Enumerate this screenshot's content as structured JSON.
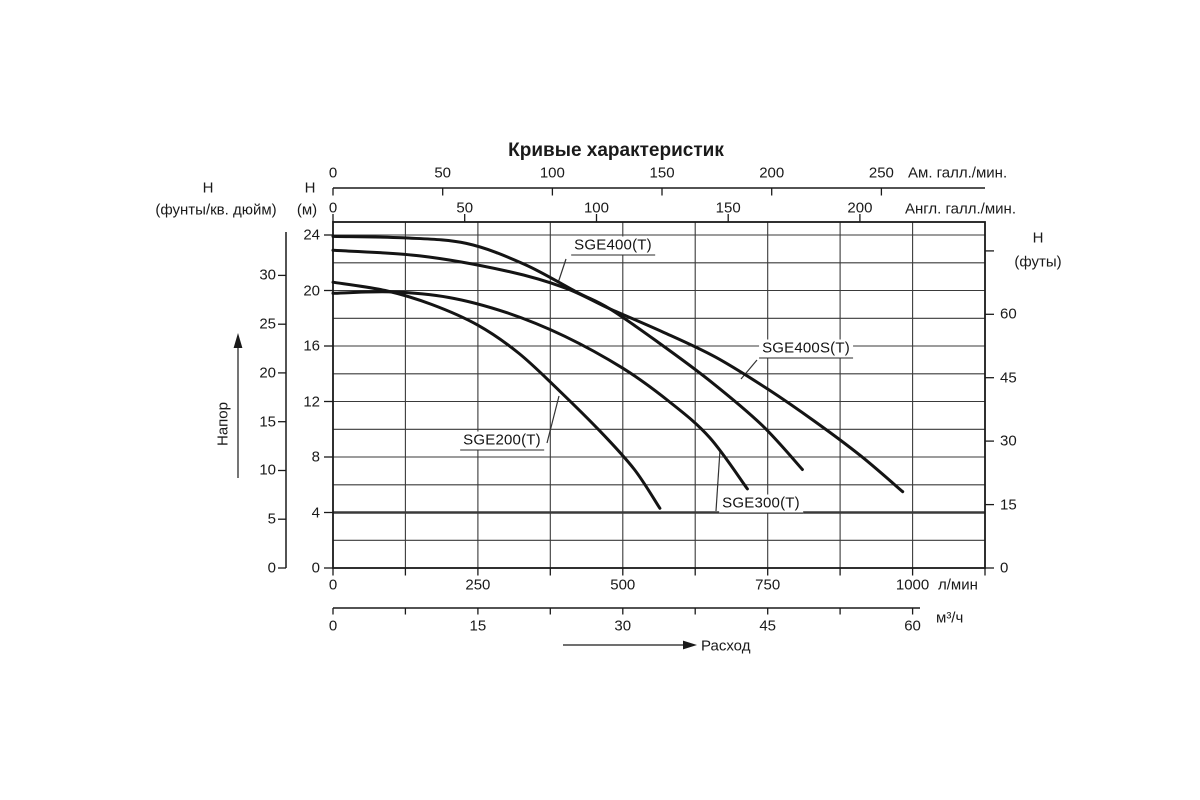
{
  "chart_data": {
    "type": "line",
    "title": "Кривые характеристик",
    "x_arrow_label": "Расход",
    "y_arrow_label": "Напор",
    "axes": {
      "top_us": {
        "unit": "Ам. галл./мин.",
        "ticks": [
          0,
          50,
          100,
          150,
          200,
          250
        ],
        "to_lpm": 3.785
      },
      "top_imp": {
        "unit": "Англ. галл./мин.",
        "ticks": [
          0,
          50,
          100,
          150,
          200
        ],
        "to_lpm": 4.546
      },
      "bottom_lpm": {
        "unit": "л/мин",
        "ticks": [
          0,
          250,
          500,
          750,
          1000
        ],
        "to_lpm": 1
      },
      "bottom_m3h": {
        "unit": "м³/ч",
        "ticks": [
          0,
          15,
          30,
          45,
          60
        ],
        "to_lpm": 16.6667
      },
      "left_psi": {
        "header": "Н",
        "header_sub": "(фунты/кв. дюйм)",
        "ticks": [
          30,
          25,
          20,
          15,
          10,
          5,
          0
        ],
        "m_per_unit": 0.70307
      },
      "left_m": {
        "header": "Н",
        "header_sub": "(м)",
        "ticks": [
          24,
          20,
          16,
          12,
          8,
          4,
          0
        ],
        "m_per_unit": 1
      },
      "right_ft": {
        "header": "Н",
        "header_sub": "(футы)",
        "ticks": [
          60,
          45,
          30,
          15,
          0
        ],
        "unlabeled_tick": 75,
        "m_per_unit": 0.3048
      },
      "x_range_lpm": [
        0,
        1125
      ],
      "y_range_m": [
        0,
        24.94
      ],
      "x_grid_step_lpm": 125,
      "y_grid_step_m": 2,
      "emphasized_gridline_m": 4,
      "grid": true
    },
    "series": [
      {
        "name": "SGE400(T)",
        "points": [
          [
            0,
            23.9
          ],
          [
            120,
            23.8
          ],
          [
            230,
            23.4
          ],
          [
            330,
            21.9
          ],
          [
            420,
            19.9
          ],
          [
            477,
            18.7
          ],
          [
            560,
            16.3
          ],
          [
            650,
            13.5
          ],
          [
            740,
            10.3
          ],
          [
            810,
            7.1
          ]
        ]
      },
      {
        "name": "SGE400S(T)",
        "points": [
          [
            0,
            22.9
          ],
          [
            150,
            22.5
          ],
          [
            300,
            21.4
          ],
          [
            400,
            20.2
          ],
          [
            477,
            18.7
          ],
          [
            570,
            17.0
          ],
          [
            660,
            15.2
          ],
          [
            750,
            12.9
          ],
          [
            830,
            10.6
          ],
          [
            910,
            8.1
          ],
          [
            983,
            5.5
          ]
        ]
      },
      {
        "name": "SGE300(T)",
        "points": [
          [
            0,
            19.8
          ],
          [
            100,
            19.9
          ],
          [
            200,
            19.5
          ],
          [
            300,
            18.4
          ],
          [
            400,
            16.7
          ],
          [
            500,
            14.4
          ],
          [
            580,
            12.0
          ],
          [
            650,
            9.4
          ],
          [
            715,
            5.7
          ]
        ]
      },
      {
        "name": "SGE200(T)",
        "points": [
          [
            0,
            20.6
          ],
          [
            90,
            20.0
          ],
          [
            170,
            19.0
          ],
          [
            250,
            17.5
          ],
          [
            320,
            15.5
          ],
          [
            390,
            12.8
          ],
          [
            460,
            9.9
          ],
          [
            520,
            7.1
          ],
          [
            564,
            4.3
          ]
        ]
      }
    ],
    "colors": {
      "curve": "#141414",
      "grid": "#3a3a3a",
      "text": "#1a1a1a"
    }
  }
}
